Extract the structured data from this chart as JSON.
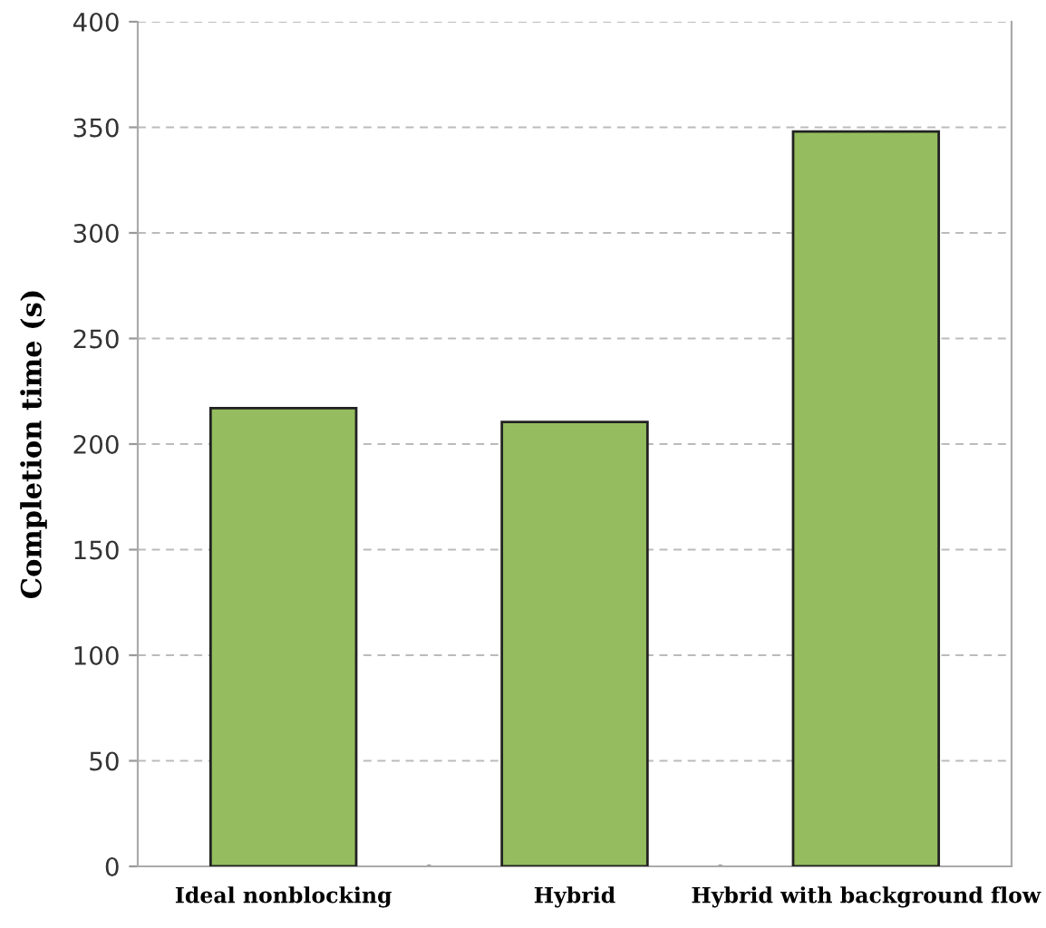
{
  "chart_data": {
    "type": "bar",
    "ylabel": "Completion time (s)",
    "categories": [
      "Ideal nonblocking",
      "Hybrid",
      "Hybrid with background flow"
    ],
    "values": [
      217,
      210.5,
      348
    ],
    "color": "#95bd5f",
    "ylim": [
      0,
      400
    ],
    "yticks": [
      0,
      50,
      100,
      150,
      200,
      250,
      300,
      350,
      400
    ],
    "grid": "y"
  }
}
